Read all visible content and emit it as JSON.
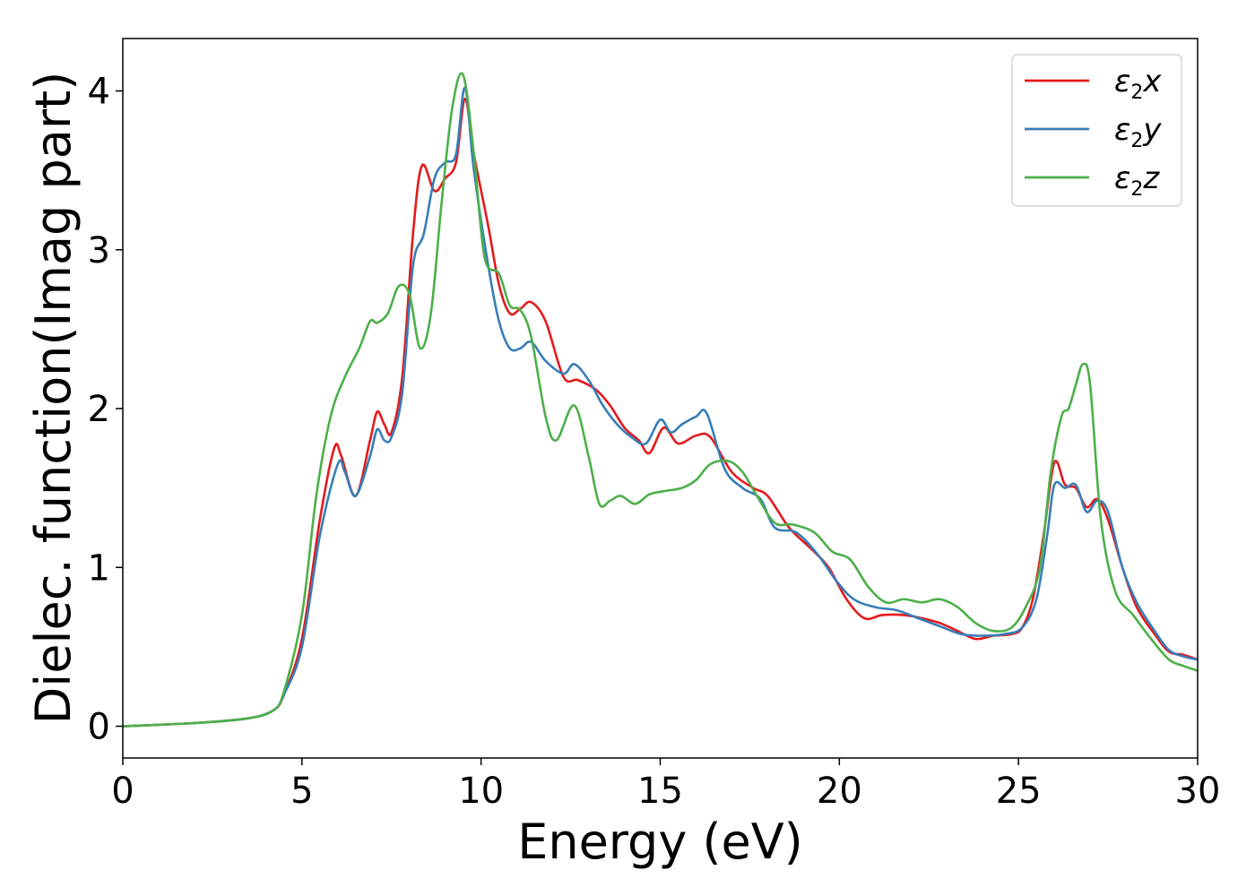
{
  "chart_data": {
    "type": "line",
    "xlabel": "Energy (eV)",
    "ylabel": "Dielec. function(Imag part)",
    "xlim": [
      0,
      30
    ],
    "ylim": [
      -0.2,
      4.33
    ],
    "xticks": [
      0,
      5,
      10,
      15,
      20,
      25,
      30
    ],
    "yticks": [
      0,
      1,
      2,
      3,
      4
    ],
    "xtick_labels": [
      "0",
      "5",
      "10",
      "15",
      "20",
      "25",
      "30"
    ],
    "ytick_labels": [
      "0",
      "1",
      "2",
      "3",
      "4"
    ],
    "grid": false,
    "legend_placement": "top-right",
    "series": [
      {
        "name": "ε2x",
        "name_parts": [
          "ε",
          "2",
          "x"
        ],
        "color": "#e41a1c",
        "x": [
          0,
          2,
          3.5,
          4.2,
          4.5,
          5,
          5.5,
          5.9,
          6.1,
          6.5,
          6.9,
          7.1,
          7.3,
          7.5,
          7.8,
          8.1,
          8.35,
          8.7,
          9.0,
          9.3,
          9.55,
          9.8,
          10.2,
          10.5,
          10.8,
          11.1,
          11.4,
          11.8,
          12.3,
          12.7,
          13.2,
          13.6,
          14.0,
          14.4,
          14.7,
          15.1,
          15.5,
          16.0,
          16.4,
          17.0,
          17.6,
          18.0,
          18.6,
          19.2,
          19.7,
          20.2,
          20.7,
          21.2,
          21.8,
          22.3,
          22.8,
          23.3,
          23.8,
          24.3,
          24.8,
          25.1,
          25.4,
          25.7,
          26.0,
          26.3,
          26.6,
          26.9,
          27.2,
          27.5,
          27.9,
          28.3,
          28.8,
          29.2,
          29.6,
          30.0
        ],
        "y": [
          0.0,
          0.02,
          0.05,
          0.1,
          0.2,
          0.55,
          1.3,
          1.75,
          1.7,
          1.45,
          1.8,
          1.98,
          1.9,
          1.85,
          2.2,
          3.1,
          3.53,
          3.37,
          3.45,
          3.55,
          3.95,
          3.6,
          3.15,
          2.78,
          2.6,
          2.63,
          2.67,
          2.55,
          2.2,
          2.18,
          2.12,
          2.02,
          1.88,
          1.8,
          1.72,
          1.88,
          1.78,
          1.83,
          1.82,
          1.6,
          1.5,
          1.45,
          1.25,
          1.12,
          1.0,
          0.8,
          0.68,
          0.7,
          0.7,
          0.68,
          0.65,
          0.6,
          0.55,
          0.57,
          0.58,
          0.62,
          0.8,
          1.2,
          1.66,
          1.52,
          1.5,
          1.38,
          1.43,
          1.3,
          1.0,
          0.75,
          0.58,
          0.47,
          0.45,
          0.42
        ]
      },
      {
        "name": "ε2y",
        "name_parts": [
          "ε",
          "2",
          "y"
        ],
        "color": "#377eb8",
        "x": [
          0,
          2,
          3.5,
          4.2,
          4.5,
          5,
          5.5,
          6.0,
          6.2,
          6.5,
          6.9,
          7.1,
          7.3,
          7.5,
          7.8,
          8.1,
          8.4,
          8.7,
          9.0,
          9.3,
          9.55,
          9.8,
          10.2,
          10.5,
          10.8,
          11.1,
          11.4,
          11.8,
          12.3,
          12.6,
          13.0,
          13.4,
          13.8,
          14.2,
          14.6,
          15.0,
          15.3,
          15.6,
          16.0,
          16.3,
          16.8,
          17.3,
          17.8,
          18.2,
          18.8,
          19.4,
          19.9,
          20.4,
          21.0,
          21.6,
          22.2,
          22.8,
          23.4,
          24.0,
          24.6,
          25.1,
          25.5,
          25.8,
          26.0,
          26.3,
          26.6,
          26.9,
          27.2,
          27.5,
          27.9,
          28.3,
          28.8,
          29.2,
          29.6,
          30.0
        ],
        "y": [
          0.0,
          0.02,
          0.05,
          0.1,
          0.2,
          0.5,
          1.2,
          1.65,
          1.6,
          1.45,
          1.7,
          1.87,
          1.8,
          1.82,
          2.1,
          2.9,
          3.1,
          3.45,
          3.55,
          3.6,
          4.02,
          3.5,
          2.9,
          2.55,
          2.38,
          2.38,
          2.42,
          2.3,
          2.22,
          2.28,
          2.18,
          2.02,
          1.9,
          1.82,
          1.78,
          1.93,
          1.85,
          1.9,
          1.95,
          1.97,
          1.62,
          1.5,
          1.43,
          1.25,
          1.22,
          1.08,
          0.92,
          0.8,
          0.75,
          0.73,
          0.68,
          0.63,
          0.58,
          0.57,
          0.58,
          0.62,
          0.8,
          1.2,
          1.52,
          1.5,
          1.52,
          1.35,
          1.42,
          1.35,
          1.0,
          0.78,
          0.6,
          0.48,
          0.44,
          0.42
        ]
      },
      {
        "name": "ε2z",
        "name_parts": [
          "ε",
          "2",
          "z"
        ],
        "color": "#4daf4a",
        "x": [
          0,
          2,
          3.5,
          4.2,
          4.5,
          5,
          5.4,
          5.8,
          6.2,
          6.6,
          6.9,
          7.1,
          7.4,
          7.7,
          8.0,
          8.3,
          8.6,
          8.9,
          9.2,
          9.5,
          9.8,
          10.1,
          10.5,
          10.8,
          11.1,
          11.4,
          11.8,
          12.1,
          12.6,
          13.0,
          13.3,
          13.6,
          13.9,
          14.3,
          14.7,
          15.1,
          15.6,
          16.0,
          16.4,
          16.9,
          17.3,
          17.7,
          18.2,
          18.7,
          19.3,
          19.8,
          20.3,
          20.8,
          21.3,
          21.8,
          22.3,
          22.8,
          23.3,
          23.8,
          24.3,
          24.8,
          25.2,
          25.6,
          25.9,
          26.2,
          26.4,
          26.6,
          26.8,
          27.0,
          27.3,
          27.7,
          28.2,
          28.7,
          29.2,
          29.6,
          30.0
        ],
        "y": [
          0.0,
          0.02,
          0.05,
          0.1,
          0.22,
          0.7,
          1.45,
          1.95,
          2.2,
          2.38,
          2.55,
          2.54,
          2.6,
          2.77,
          2.72,
          2.38,
          2.6,
          3.3,
          3.9,
          4.1,
          3.6,
          2.95,
          2.85,
          2.65,
          2.62,
          2.45,
          1.95,
          1.8,
          2.02,
          1.7,
          1.4,
          1.42,
          1.45,
          1.4,
          1.46,
          1.48,
          1.5,
          1.55,
          1.65,
          1.67,
          1.6,
          1.45,
          1.28,
          1.27,
          1.22,
          1.1,
          1.05,
          0.88,
          0.78,
          0.8,
          0.78,
          0.8,
          0.75,
          0.65,
          0.6,
          0.62,
          0.75,
          1.0,
          1.6,
          1.95,
          2.0,
          2.15,
          2.28,
          2.15,
          1.3,
          0.85,
          0.7,
          0.55,
          0.42,
          0.38,
          0.35
        ]
      }
    ]
  }
}
